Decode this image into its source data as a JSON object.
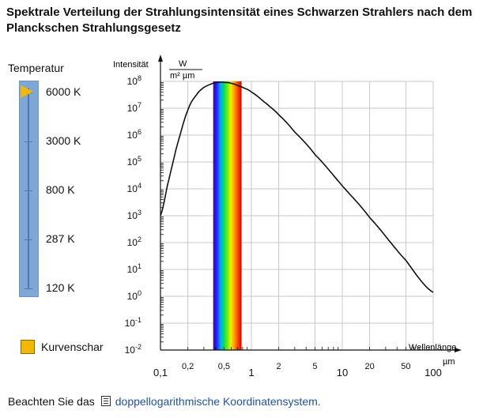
{
  "title": "Spektrale Verteilung der Strahlungsintensität eines Schwarzen Strahlers nach dem Planckschen Strahlungsgesetz",
  "temperature": {
    "label": "Temperatur",
    "ticks": [
      "6000 K",
      "3000 K",
      "800 K",
      "287 K",
      "120 K"
    ],
    "selected": "6000 K"
  },
  "option": {
    "label": "Kurvenschar",
    "checked": true
  },
  "footer": {
    "text": "Beachten Sie das",
    "link": "doppellogarithmische Koordinatensystem."
  },
  "colors": {
    "slider": "#7fa7d6",
    "thumb": "#f5b800",
    "link": "#1f4fb3"
  },
  "icons": {
    "thumb": "triangle-thumb-icon",
    "doc": "document-icon"
  },
  "chart_data": {
    "type": "line",
    "ylabel": "Intensität",
    "yunit_num": "W",
    "yunit_den": "m² µm",
    "xlabel": "Wellenlänge",
    "xunit": "µm",
    "xscale": "log",
    "yscale": "log",
    "xlim": [
      0.1,
      100
    ],
    "ylim": [
      0.01,
      100000000
    ],
    "x_major_ticks": [
      "0,1",
      "1",
      "10",
      "100"
    ],
    "x_minor_ticks": [
      "0,2",
      "0,5",
      "2",
      "5",
      "20",
      "50"
    ],
    "y_ticks": [
      "10^8",
      "10^7",
      "10^6",
      "10^5",
      "10^4",
      "10^3",
      "10^2",
      "10^1",
      "10^0",
      "10^-1",
      "10^-2"
    ],
    "grid": true,
    "visible_band_um": [
      0.38,
      0.78
    ],
    "series": [
      {
        "temperature_K": 6000,
        "x": [
          0.1,
          0.12,
          0.15,
          0.2,
          0.25,
          0.3,
          0.4,
          0.5,
          0.6,
          0.8,
          1,
          1.5,
          2,
          3,
          5,
          10,
          20,
          50,
          100
        ],
        "y": [
          1000,
          15000,
          350000,
          8500000,
          32000000,
          60000000,
          89000000,
          92000000,
          85000000,
          60000000,
          40000000,
          14000000,
          5700000,
          1300000,
          190000,
          13000,
          850,
          22,
          1.4
        ]
      }
    ]
  }
}
